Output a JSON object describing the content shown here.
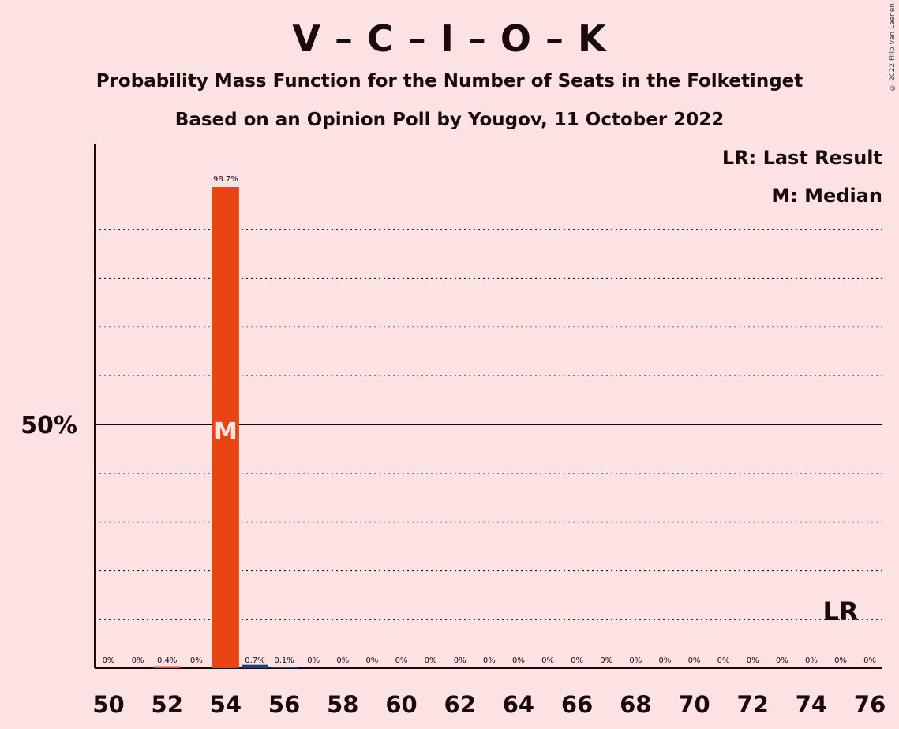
{
  "title": "V – C – I – O – K",
  "subtitle1": "Probability Mass Function for the Number of Seats in the Folketinget",
  "subtitle2": "Based on an Opinion Poll by Yougov, 11 October 2022",
  "copyright": "© 2022 Filip van Laenen",
  "legend": {
    "last_result": "LR: Last Result",
    "median": "M: Median"
  },
  "colors": {
    "background": "#fde2e4",
    "main_bar": "#e84513",
    "small_bar": "#1f3f7a",
    "text": "#1a0a0a"
  },
  "chart_data": {
    "type": "bar",
    "x": [
      50,
      51,
      52,
      53,
      54,
      55,
      56,
      57,
      58,
      59,
      60,
      61,
      62,
      63,
      64,
      65,
      66,
      67,
      68,
      69,
      70,
      71,
      72,
      73,
      74,
      75,
      76
    ],
    "values": [
      0,
      0,
      0.4,
      0,
      98.7,
      0.7,
      0.1,
      0,
      0,
      0,
      0,
      0,
      0,
      0,
      0,
      0,
      0,
      0,
      0,
      0,
      0,
      0,
      0,
      0,
      0,
      0,
      0
    ],
    "data_labels": [
      "0%",
      "0%",
      "0.4%",
      "0%",
      "98.7%",
      "0.7%",
      "0.1%",
      "0%",
      "0%",
      "0%",
      "0%",
      "0%",
      "0%",
      "0%",
      "0%",
      "0%",
      "0%",
      "0%",
      "0%",
      "0%",
      "0%",
      "0%",
      "0%",
      "0%",
      "0%",
      "0%",
      "0%"
    ],
    "x_tick_labels": [
      "50",
      "52",
      "54",
      "56",
      "58",
      "60",
      "62",
      "64",
      "66",
      "68",
      "70",
      "72",
      "74",
      "76"
    ],
    "y_tick_label": "50%",
    "ylim": [
      0,
      107.6
    ],
    "median_seat": 54,
    "median_marker": "M",
    "last_result_seat": 75,
    "last_result_marker": "LR",
    "grid": "dotted lines every 10%, solid line at 50%"
  }
}
